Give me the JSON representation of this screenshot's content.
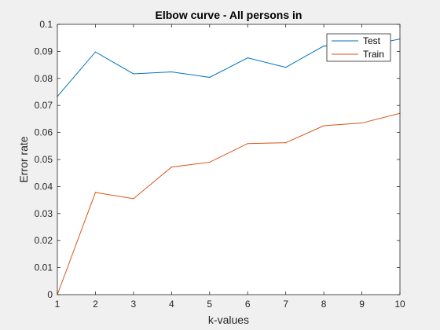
{
  "chart_data": {
    "type": "line",
    "title": "Elbow curve - All persons in",
    "xlabel": "k-values",
    "ylabel": "Error rate",
    "xlim": [
      1,
      10
    ],
    "ylim": [
      0,
      0.1
    ],
    "x": [
      1,
      2,
      3,
      4,
      5,
      6,
      7,
      8,
      9,
      10
    ],
    "xticks": [
      "1",
      "2",
      "3",
      "4",
      "5",
      "6",
      "7",
      "8",
      "9",
      "10"
    ],
    "yticks": [
      "0",
      "0.01",
      "0.02",
      "0.03",
      "0.04",
      "0.05",
      "0.06",
      "0.07",
      "0.08",
      "0.09",
      "0.1"
    ],
    "grid": false,
    "legend_position": "top-right",
    "series": [
      {
        "name": "Test",
        "color": "#0072bd",
        "values": [
          0.0733,
          0.0898,
          0.0817,
          0.0824,
          0.0804,
          0.0876,
          0.0841,
          0.092,
          0.0917,
          0.0946
        ]
      },
      {
        "name": "Train",
        "color": "#d95319",
        "values": [
          0.0,
          0.0378,
          0.0355,
          0.0472,
          0.049,
          0.0559,
          0.0562,
          0.0625,
          0.0635,
          0.0671
        ]
      }
    ]
  }
}
